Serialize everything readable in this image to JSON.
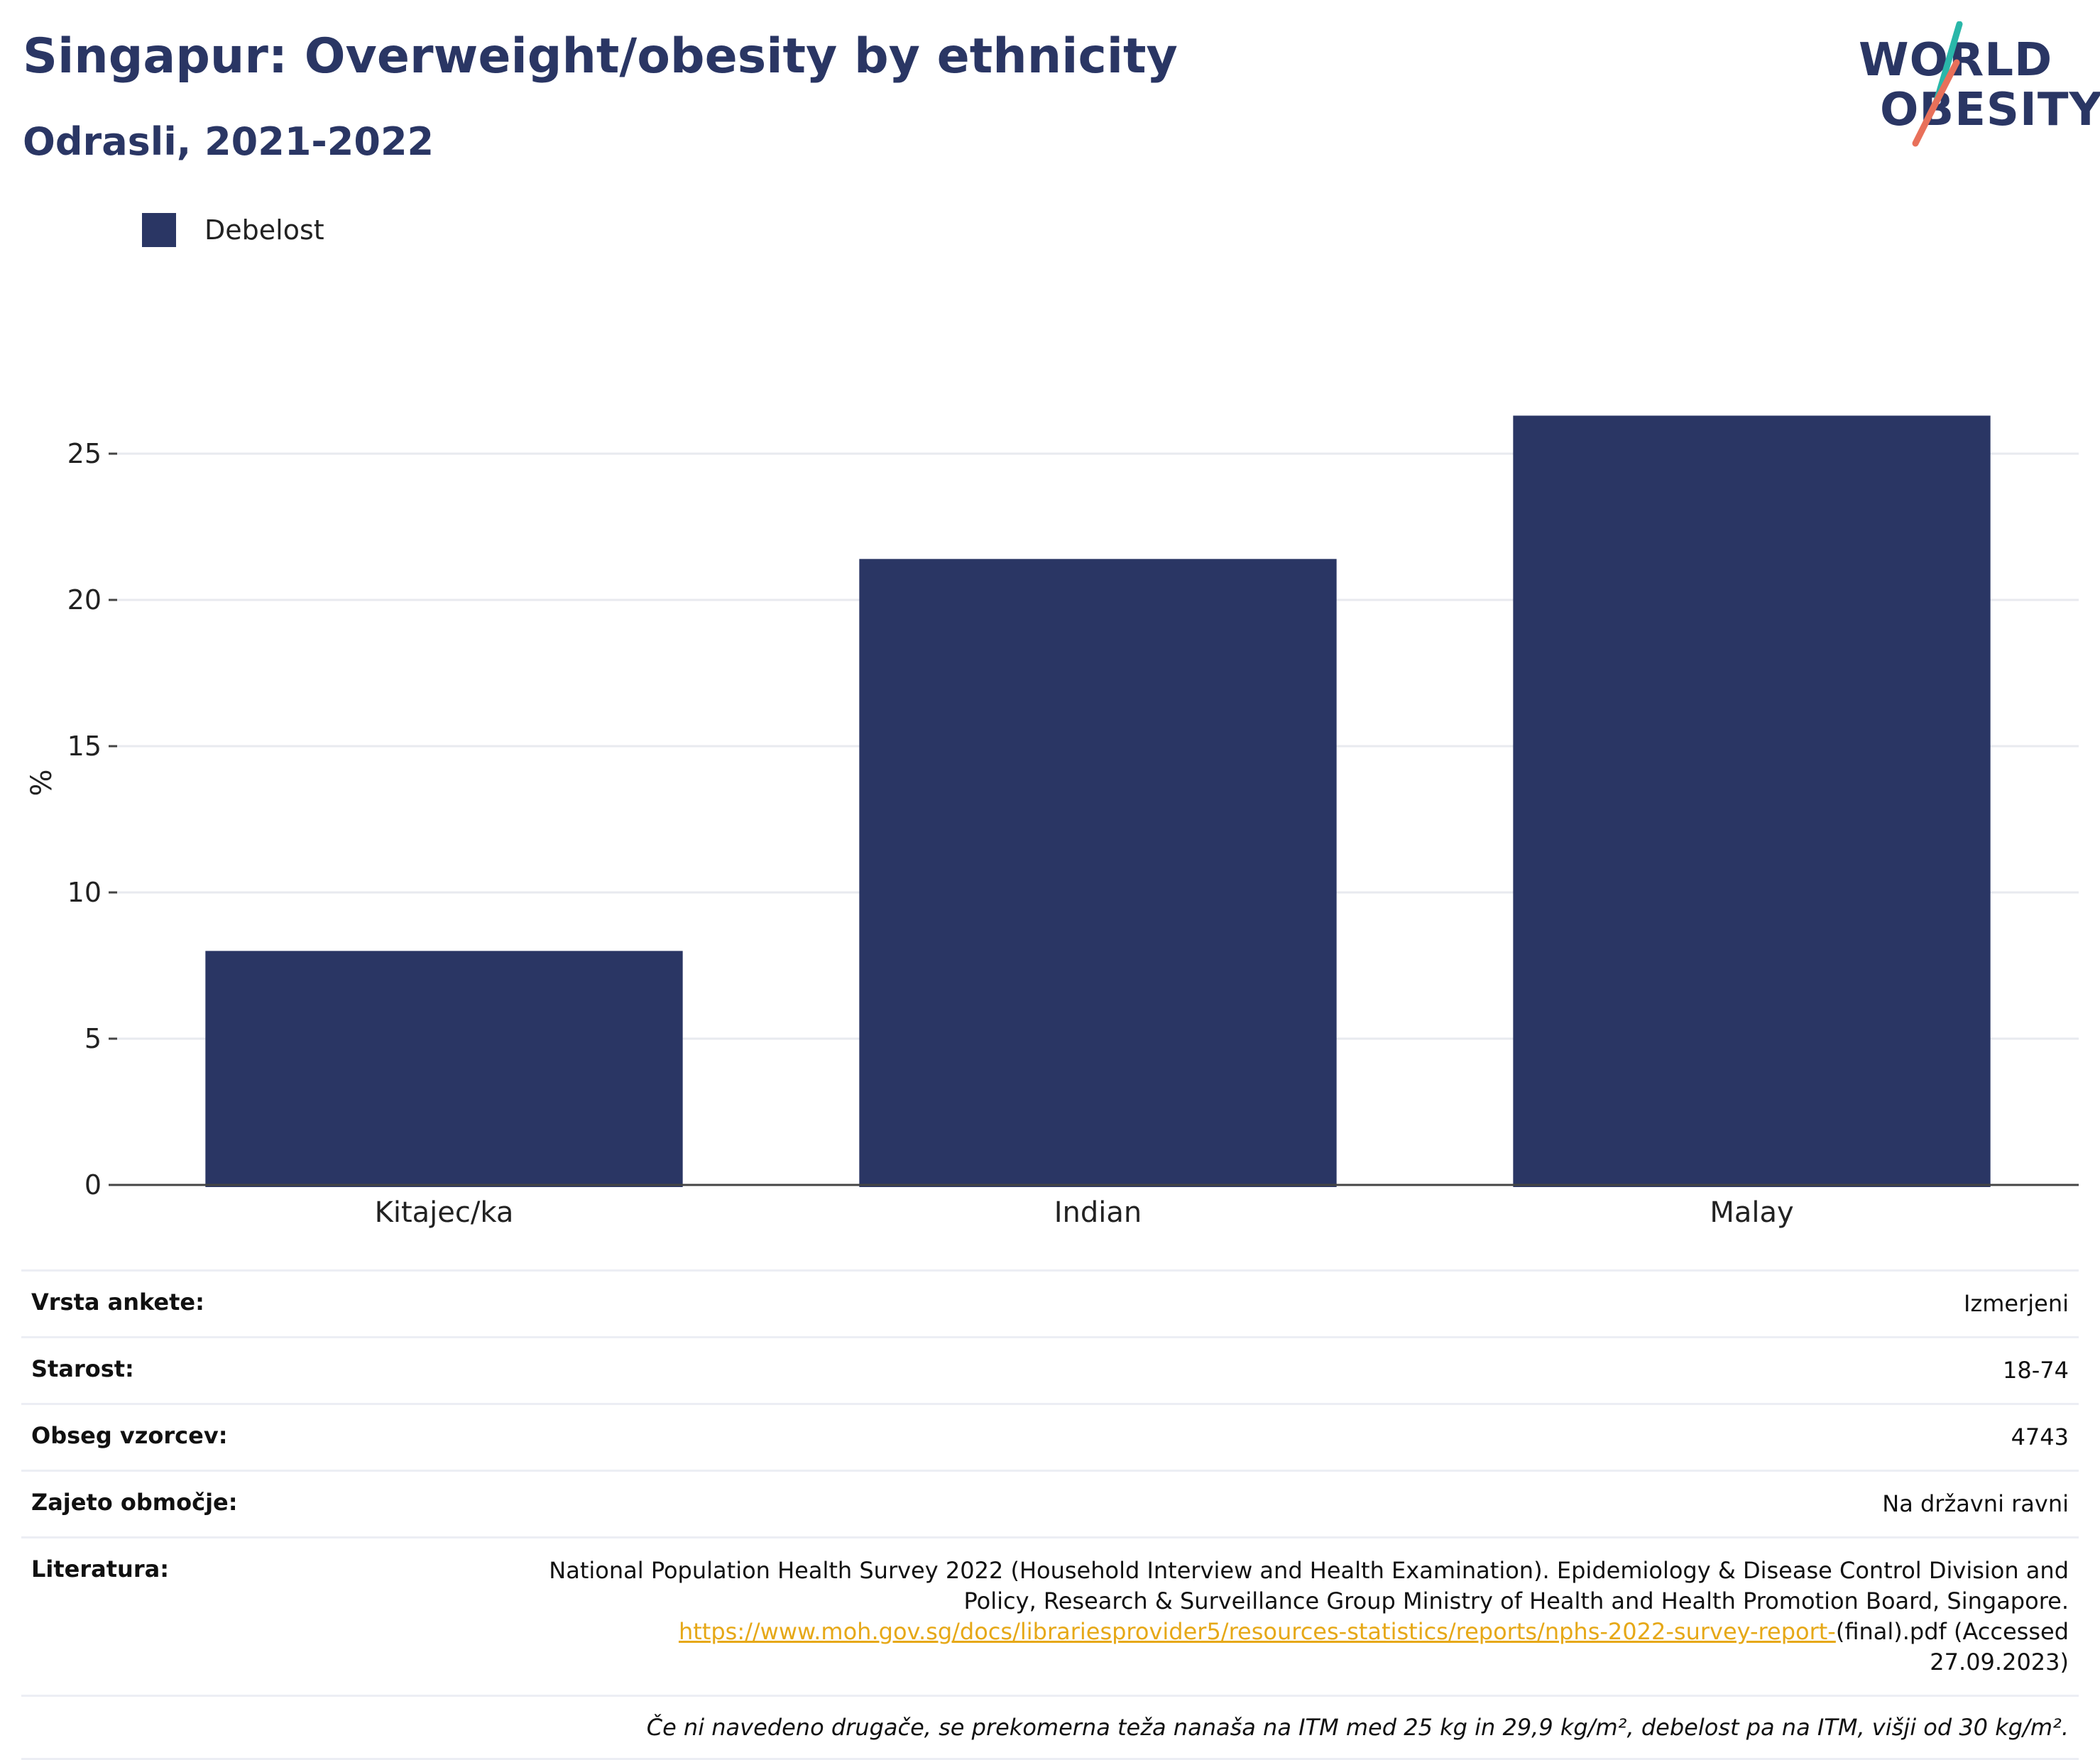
{
  "header": {
    "title": "Singapur: Overweight/obesity by ethnicity",
    "subtitle": "Odrasli, 2021-2022"
  },
  "logo": {
    "line1": "WORLD",
    "line2": "OBESITY",
    "accent_teal": "#2ab7a9",
    "accent_coral": "#e8705a"
  },
  "legend": {
    "items": [
      {
        "label": "Debelost",
        "color": "#2a3664"
      }
    ]
  },
  "chart_data": {
    "type": "bar",
    "categories": [
      "Kitajec/ka",
      "Indian",
      "Malay"
    ],
    "series": [
      {
        "name": "Debelost",
        "values": [
          8.0,
          21.4,
          26.3
        ],
        "color": "#2a3664"
      }
    ],
    "ylabel": "%",
    "xlabel": "",
    "ylim": [
      0,
      27.5
    ],
    "yticks": [
      0,
      5,
      10,
      15,
      20,
      25
    ],
    "grid": true,
    "legend_position": "top-left"
  },
  "info": {
    "rows": [
      {
        "key": "Vrsta ankete:",
        "value": "Izmerjeni"
      },
      {
        "key": "Starost:",
        "value": "18-74"
      },
      {
        "key": "Obseg vzorcev:",
        "value": "4743"
      },
      {
        "key": "Zajeto območje:",
        "value": "Na državni ravni"
      }
    ],
    "literature": {
      "key": "Literatura:",
      "line1": "National Population Health Survey 2022 (Household Interview and Health Examination). Epidemiology & Disease Control Division and",
      "line2": "Policy, Research & Surveillance Group Ministry of Health and Health Promotion Board, Singapore.",
      "link": "https://www.moh.gov.sg/docs/librariesprovider5/resources-statistics/reports/nphs-2022-survey-report-",
      "after_link": "(final).pdf (Accessed",
      "line4": "27.09.2023)"
    },
    "note": "Če ni navedeno drugače, se prekomerna teža nanaša na ITM med 25 kg in 29,9 kg/m², debelost pa na ITM, višji od 30 kg/m²."
  }
}
